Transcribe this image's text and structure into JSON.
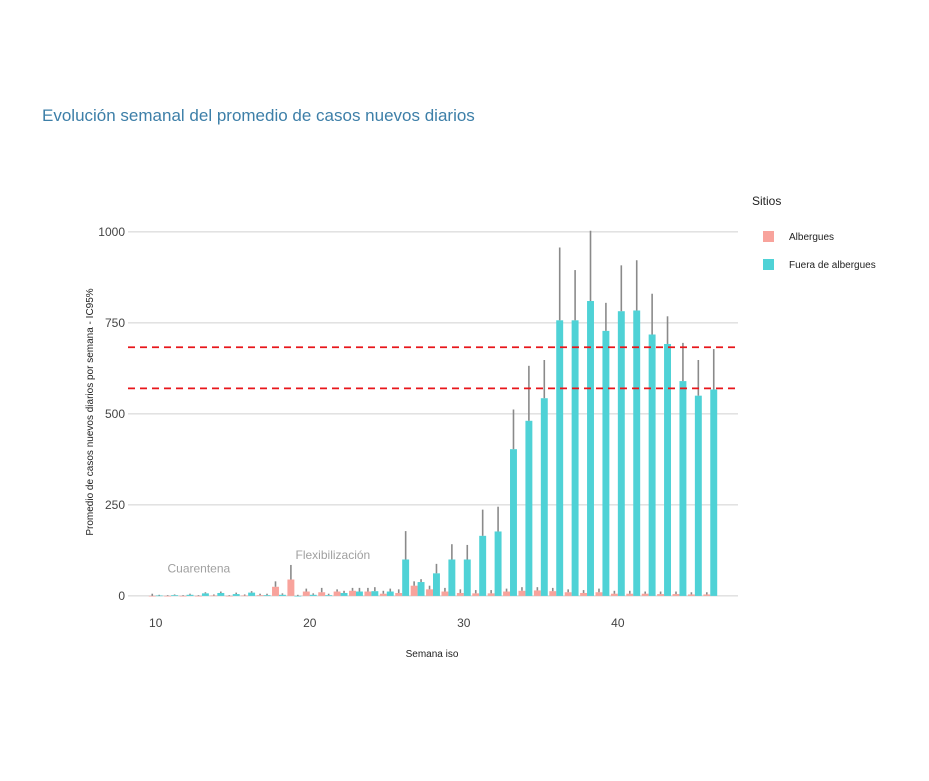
{
  "chart_data": {
    "type": "bar",
    "title": "Evolución semanal del promedio de casos nuevos diarios",
    "xlabel": "Semana iso",
    "ylabel": "Promedio de casos nuevos diarios por semana - IC95%",
    "xlim": [
      8.2,
      47.8
    ],
    "ylim": [
      -25,
      1060
    ],
    "x_ticks": [
      10,
      20,
      30,
      40
    ],
    "y_ticks": [
      0,
      250,
      500,
      750,
      1000
    ],
    "legend_title": "Sitios",
    "legend_position": "right",
    "colors": {
      "Albergues": "#f8a39c",
      "Fuera de albergues": "#4fd2d6",
      "error_bar": "#8a8a8a",
      "reference_line": "#e8161b"
    },
    "reference_lines": [
      683,
      570
    ],
    "annotations": [
      {
        "text": "Cuarentena",
        "x": 12.8,
        "y": 75
      },
      {
        "text": "Flexibilización",
        "x": 21.5,
        "y": 112
      }
    ],
    "weeks": [
      10,
      11,
      12,
      13,
      14,
      15,
      16,
      17,
      18,
      19,
      20,
      21,
      22,
      23,
      24,
      25,
      26,
      27,
      28,
      29,
      30,
      31,
      32,
      33,
      34,
      35,
      36,
      37,
      38,
      39,
      40,
      41,
      42,
      43,
      44,
      45,
      46
    ],
    "series": [
      {
        "name": "Albergues",
        "values": [
          0,
          0,
          0,
          0,
          1,
          0,
          1,
          2,
          25,
          45,
          12,
          10,
          12,
          14,
          12,
          6,
          8,
          28,
          18,
          12,
          8,
          7,
          7,
          12,
          14,
          15,
          13,
          10,
          8,
          10,
          6,
          6,
          6,
          5,
          5,
          4,
          4
        ],
        "upper": [
          6,
          2,
          2,
          2,
          4,
          2,
          4,
          6,
          40,
          85,
          20,
          22,
          18,
          22,
          22,
          14,
          18,
          40,
          28,
          22,
          18,
          16,
          16,
          20,
          24,
          24,
          22,
          18,
          16,
          20,
          14,
          14,
          12,
          12,
          12,
          10,
          10
        ]
      },
      {
        "name": "Fuera de albergues",
        "values": [
          1,
          2,
          3,
          7,
          8,
          5,
          9,
          2,
          3,
          0,
          3,
          2,
          8,
          12,
          13,
          12,
          100,
          38,
          62,
          100,
          100,
          165,
          177,
          403,
          481,
          543,
          757,
          757,
          810,
          728,
          782,
          784,
          718,
          692,
          590,
          550,
          567
        ],
        "upper": [
          3,
          4,
          6,
          10,
          12,
          9,
          13,
          6,
          7,
          3,
          7,
          6,
          14,
          22,
          24,
          20,
          178,
          46,
          88,
          142,
          140,
          237,
          245,
          512,
          632,
          648,
          957,
          895,
          1003,
          805,
          908,
          922,
          830,
          768,
          695,
          648,
          678
        ]
      }
    ]
  }
}
